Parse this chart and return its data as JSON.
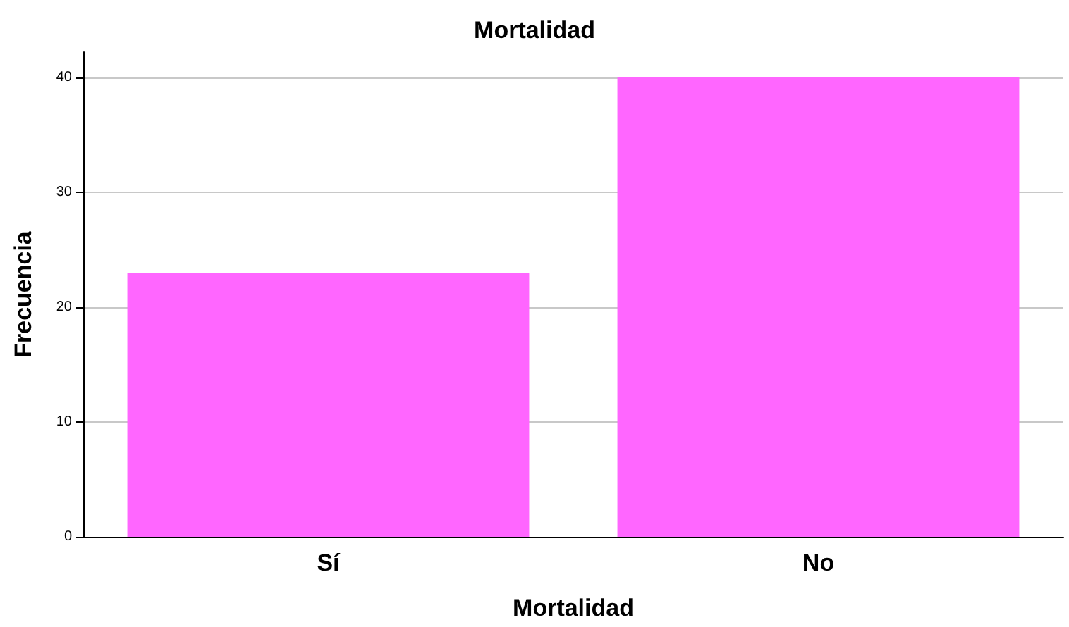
{
  "chart_data": {
    "type": "bar",
    "title": "Mortalidad",
    "xlabel": "Mortalidad",
    "ylabel": "Frecuencia",
    "categories": [
      "Sí",
      "No"
    ],
    "values": [
      23,
      40
    ],
    "color": "#ff66ff",
    "ylim": [
      0,
      42.2
    ],
    "yticks": [
      0,
      10,
      20,
      30,
      40
    ],
    "grid": "y"
  }
}
